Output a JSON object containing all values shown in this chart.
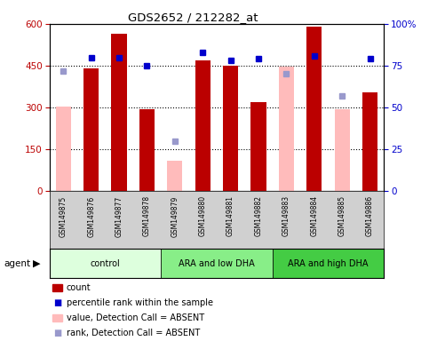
{
  "title": "GDS2652 / 212282_at",
  "samples": [
    "GSM149875",
    "GSM149876",
    "GSM149877",
    "GSM149878",
    "GSM149879",
    "GSM149880",
    "GSM149881",
    "GSM149882",
    "GSM149883",
    "GSM149884",
    "GSM149885",
    "GSM149886"
  ],
  "count": [
    null,
    440,
    565,
    293,
    null,
    470,
    450,
    320,
    null,
    590,
    null,
    355
  ],
  "count_absent": [
    302,
    null,
    null,
    null,
    108,
    null,
    null,
    null,
    448,
    null,
    295,
    null
  ],
  "rank_present": [
    null,
    80,
    80,
    75,
    null,
    83,
    78,
    79,
    null,
    81,
    null,
    79
  ],
  "rank_absent": [
    72,
    null,
    null,
    null,
    30,
    null,
    null,
    null,
    70,
    null,
    57,
    null
  ],
  "groups": [
    {
      "label": "control",
      "start": 0,
      "end": 4,
      "color": "#ddffdd"
    },
    {
      "label": "ARA and low DHA",
      "start": 4,
      "end": 8,
      "color": "#88ee88"
    },
    {
      "label": "ARA and high DHA",
      "start": 8,
      "end": 12,
      "color": "#44cc44"
    }
  ],
  "ylim_left": [
    0,
    600
  ],
  "ylim_right": [
    0,
    100
  ],
  "yticks_left": [
    0,
    150,
    300,
    450,
    600
  ],
  "yticks_right": [
    0,
    25,
    50,
    75,
    100
  ],
  "color_count": "#bb0000",
  "color_count_absent": "#ffbbbb",
  "color_rank_present": "#0000cc",
  "color_rank_absent": "#9999cc",
  "plot_bg": "#ffffff",
  "label_bg": "#d0d0d0"
}
